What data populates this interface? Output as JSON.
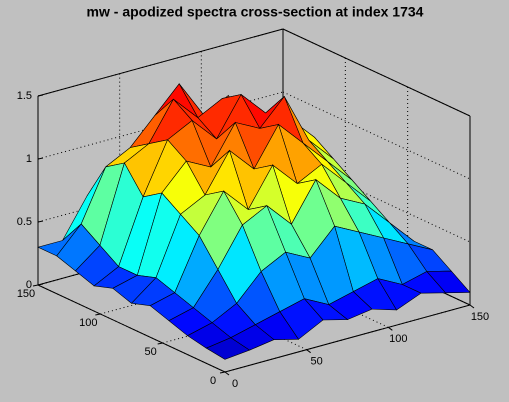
{
  "chart_data": {
    "type": "surface",
    "title": "mw - apodized spectra cross-section at index 1734",
    "x": [
      0,
      15,
      30,
      45,
      60,
      75,
      90,
      105,
      120,
      135,
      150
    ],
    "y": [
      0,
      15,
      30,
      45,
      60,
      75,
      90,
      105,
      120,
      135,
      150
    ],
    "z": [
      [
        0.1,
        0.12,
        0.15,
        0.1,
        0.2,
        0.15,
        0.18,
        0.12,
        0.2,
        0.15,
        0.1
      ],
      [
        0.12,
        0.15,
        0.2,
        0.25,
        0.3,
        0.2,
        0.25,
        0.3,
        0.2,
        0.25,
        0.2
      ],
      [
        0.15,
        0.2,
        0.3,
        0.5,
        0.6,
        0.5,
        0.7,
        0.6,
        0.5,
        0.4,
        0.3
      ],
      [
        0.2,
        0.25,
        0.5,
        0.8,
        0.9,
        0.7,
        1.0,
        0.8,
        0.7,
        0.5,
        0.3
      ],
      [
        0.25,
        0.3,
        0.7,
        1.0,
        0.8,
        1.1,
        0.9,
        1.0,
        0.8,
        0.6,
        0.25
      ],
      [
        0.2,
        0.35,
        0.8,
        0.9,
        1.2,
        1.0,
        1.3,
        1.1,
        0.9,
        0.7,
        0.3
      ],
      [
        0.25,
        0.3,
        0.9,
        1.1,
        1.0,
        1.3,
        1.2,
        1.4,
        1.0,
        0.8,
        0.3
      ],
      [
        0.2,
        0.3,
        0.8,
        1.2,
        1.3,
        1.1,
        1.4,
        1.2,
        1.1,
        0.9,
        0.35
      ],
      [
        0.25,
        0.4,
        1.0,
        1.1,
        1.4,
        1.2,
        1.3,
        1.1,
        1.0,
        0.8,
        0.3
      ],
      [
        0.3,
        0.5,
        0.9,
        1.0,
        1.2,
        1.4,
        1.1,
        1.2,
        0.9,
        0.7,
        0.3
      ],
      [
        0.3,
        0.3,
        0.6,
        0.7,
        0.8,
        0.9,
        0.8,
        0.7,
        0.6,
        0.5,
        0.3
      ]
    ],
    "xlim": [
      0,
      150
    ],
    "xticks": [
      0,
      50,
      100,
      150
    ],
    "ylim": [
      0,
      150
    ],
    "yticks": [
      0,
      50,
      100,
      150
    ],
    "zlim": [
      0,
      1.5
    ],
    "zticks": [
      0,
      0.5,
      1,
      1.5
    ],
    "colormap": "jet",
    "grid": true
  }
}
